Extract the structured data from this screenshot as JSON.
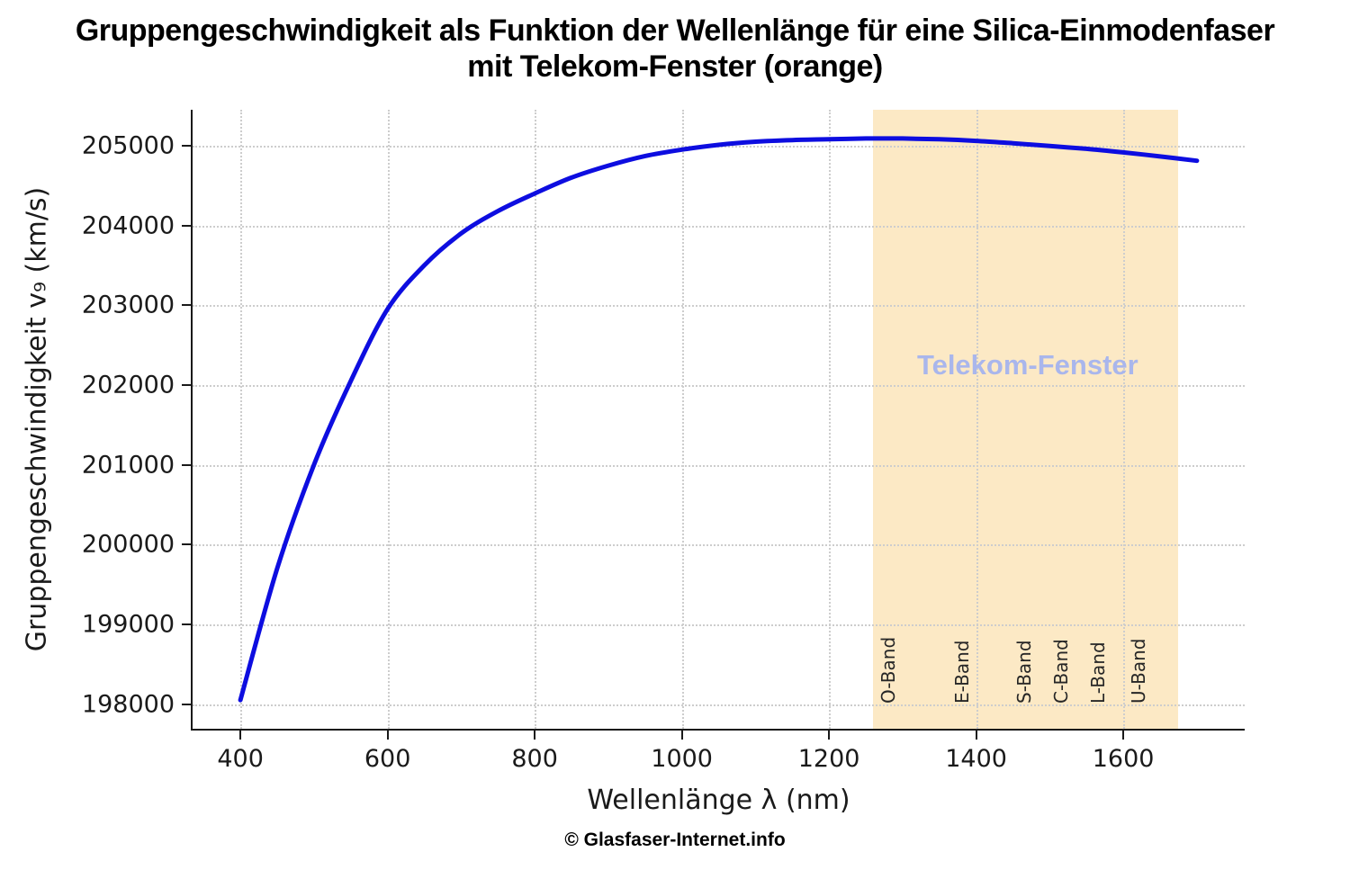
{
  "page": {
    "title_line1": "Gruppengeschwindigkeit als Funktion der Wellenlänge für eine Silica-Einmodenfaser",
    "title_line2": "mit Telekom-Fenster (orange)",
    "footer": "© Glasfaser-Internet.info"
  },
  "chart_data": {
    "type": "line",
    "title": "Gruppengeschwindigkeit als Funktion der Wellenlänge für eine Silica-Einmodenfaser mit Telekom-Fenster (orange)",
    "xlabel": "Wellenlänge λ (nm)",
    "ylabel": "Gruppengeschwindigkeit v₉ (km/s)",
    "xlim": [
      335,
      1765
    ],
    "ylim": [
      197690,
      205450
    ],
    "x_ticks": [
      400,
      600,
      800,
      1000,
      1200,
      1400,
      1600
    ],
    "y_ticks": [
      198000,
      199000,
      200000,
      201000,
      202000,
      203000,
      204000,
      205000
    ],
    "grid": "dotted",
    "legend_position": "none",
    "series": [
      {
        "name": "Gruppengeschwindigkeit",
        "color": "#0d0de0",
        "line_width": 5,
        "x": [
          400,
          450,
          500,
          550,
          600,
          650,
          700,
          750,
          800,
          850,
          900,
          950,
          1000,
          1050,
          1100,
          1150,
          1200,
          1250,
          1300,
          1350,
          1400,
          1450,
          1500,
          1550,
          1600,
          1650,
          1700
        ],
        "y": [
          198050,
          199700,
          201000,
          202050,
          202950,
          203500,
          203900,
          204180,
          204400,
          204600,
          204750,
          204870,
          204950,
          205010,
          205050,
          205070,
          205080,
          205090,
          205090,
          205080,
          205060,
          205030,
          204995,
          204960,
          204915,
          204865,
          204810
        ]
      }
    ],
    "highlight_band": {
      "label": "Telekom-Fenster",
      "x_start": 1260,
      "x_end": 1675,
      "fill_color": "#fce9c5",
      "label_color": "#a9b6ec",
      "label_x": 1470,
      "label_y": 202250
    },
    "band_annotations": [
      {
        "label": "O-Band",
        "x": 1310
      },
      {
        "label": "E-Band",
        "x": 1410
      },
      {
        "label": "S-Band",
        "x": 1495
      },
      {
        "label": "C-Band",
        "x": 1545
      },
      {
        "label": "L-Band",
        "x": 1595
      },
      {
        "label": "U-Band",
        "x": 1650
      }
    ]
  }
}
